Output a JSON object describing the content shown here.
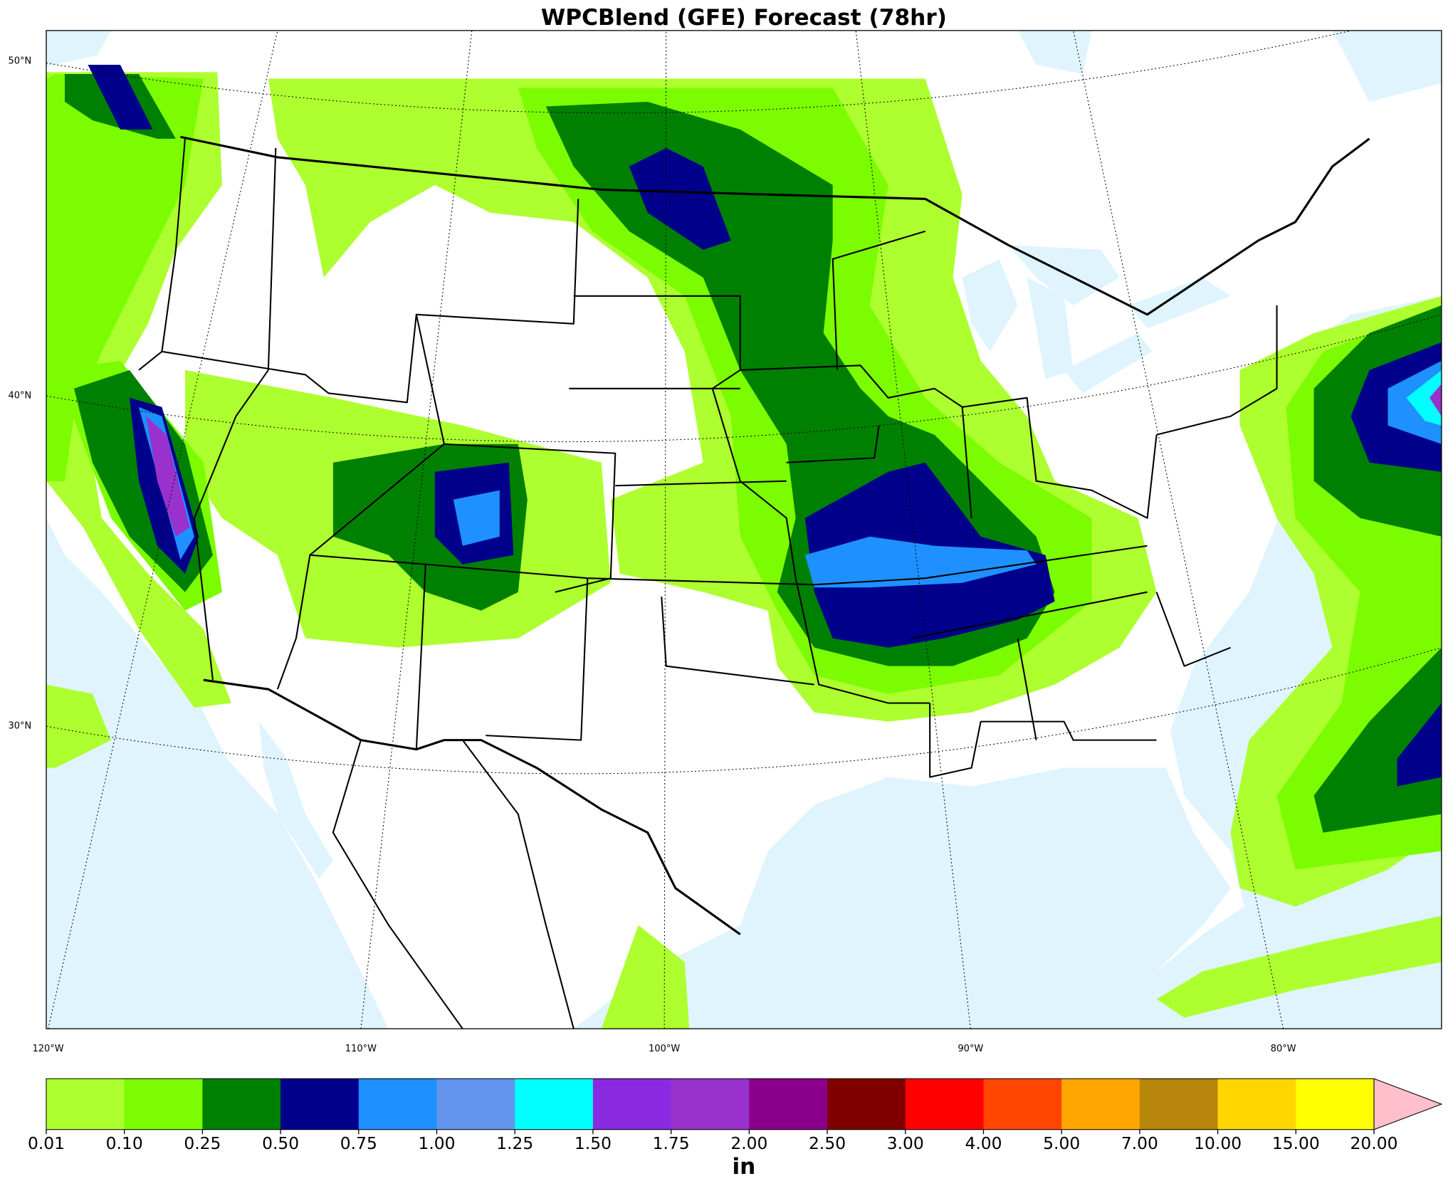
{
  "title": "WPCBlend (GFE) Forecast (78hr)",
  "map": {
    "lat_labels": [
      "50°N",
      "40°N",
      "30°N"
    ],
    "lon_labels": [
      "120°W",
      "110°W",
      "100°W",
      "90°W",
      "80°W"
    ]
  },
  "colorbar": {
    "label": "in",
    "ticks": [
      {
        "value": 0.01,
        "label": "0.01"
      },
      {
        "value": 0.1,
        "label": "0.10"
      },
      {
        "value": 0.25,
        "label": "0.25"
      },
      {
        "value": 0.5,
        "label": "0.50"
      },
      {
        "value": 0.75,
        "label": "0.75"
      },
      {
        "value": 1,
        "label": "1.00"
      },
      {
        "value": 1.25,
        "label": "1.25"
      },
      {
        "value": 1.5,
        "label": "1.50"
      },
      {
        "value": 1.75,
        "label": "1.75"
      },
      {
        "value": 2,
        "label": "2.00"
      },
      {
        "value": 2.5,
        "label": "2.50"
      },
      {
        "value": 3,
        "label": "3.00"
      },
      {
        "value": 4,
        "label": "4.00"
      },
      {
        "value": 5,
        "label": "5.00"
      },
      {
        "value": 7,
        "label": "7.00"
      },
      {
        "value": 10,
        "label": "10.00"
      },
      {
        "value": 15,
        "label": "15.00"
      },
      {
        "value": 20,
        "label": "20.00"
      }
    ],
    "colors": [
      "#adff2f",
      "#7cfc00",
      "#008000",
      "#00008b",
      "#1e90ff",
      "#6495ed",
      "#00ffff",
      "#8a2be2",
      "#9932cc",
      "#8b008b",
      "#800000",
      "#ff0000",
      "#ff4500",
      "#ffa500",
      "#b8860b",
      "#ffd700",
      "#ffff00"
    ],
    "extend_color": "#ffc0cb"
  }
}
